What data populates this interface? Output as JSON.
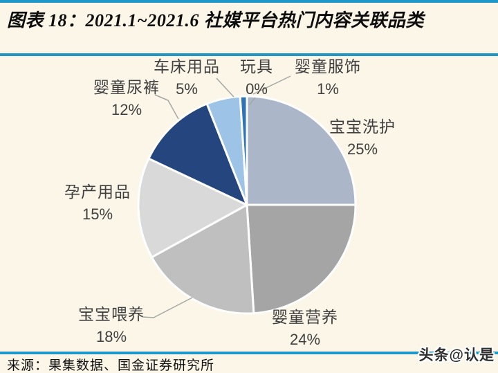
{
  "page": {
    "title": "图表 18：2021.1~2021.6 社媒平台热门内容关联品类",
    "source": "来源：果集数据、国金证券研究所",
    "watermark": "头条@认是"
  },
  "colors": {
    "background": "#FCF6E8",
    "accent_line": "#1E96C8",
    "label_text": "#3F3F3F",
    "leader_line": "#A6A6A6",
    "slice_border": "#FFFFFF"
  },
  "chart_data": {
    "type": "pie",
    "title": "2021.1~2021.6 社媒平台热门内容关联品类",
    "legend": "none",
    "start_angle_deg": 0,
    "direction": "clockwise",
    "slices": [
      {
        "id": "baby-bath-care",
        "label": "宝宝洗护",
        "value": 25,
        "pct_label": "25%",
        "color": "#ABB6C9"
      },
      {
        "id": "infant-nutrition",
        "label": "婴童营养",
        "value": 24,
        "pct_label": "24%",
        "color": "#A5A5A5"
      },
      {
        "id": "baby-feeding",
        "label": "宝宝喂养",
        "value": 18,
        "pct_label": "18%",
        "color": "#BFBFBF"
      },
      {
        "id": "maternity-products",
        "label": "孕产用品",
        "value": 15,
        "pct_label": "15%",
        "color": "#D9D9D9"
      },
      {
        "id": "baby-diapers",
        "label": "婴童尿裤",
        "value": 12,
        "pct_label": "12%",
        "color": "#24457E"
      },
      {
        "id": "stroller-crib-goods",
        "label": "车床用品",
        "value": 5,
        "pct_label": "5%",
        "color": "#9DC3E6"
      },
      {
        "id": "toys",
        "label": "玩具",
        "value": 0,
        "pct_label": "0%",
        "color": "#2E74B5"
      },
      {
        "id": "infant-apparel",
        "label": "婴童服饰",
        "value": 1,
        "pct_label": "1%",
        "color": "#2E74B5"
      }
    ]
  }
}
